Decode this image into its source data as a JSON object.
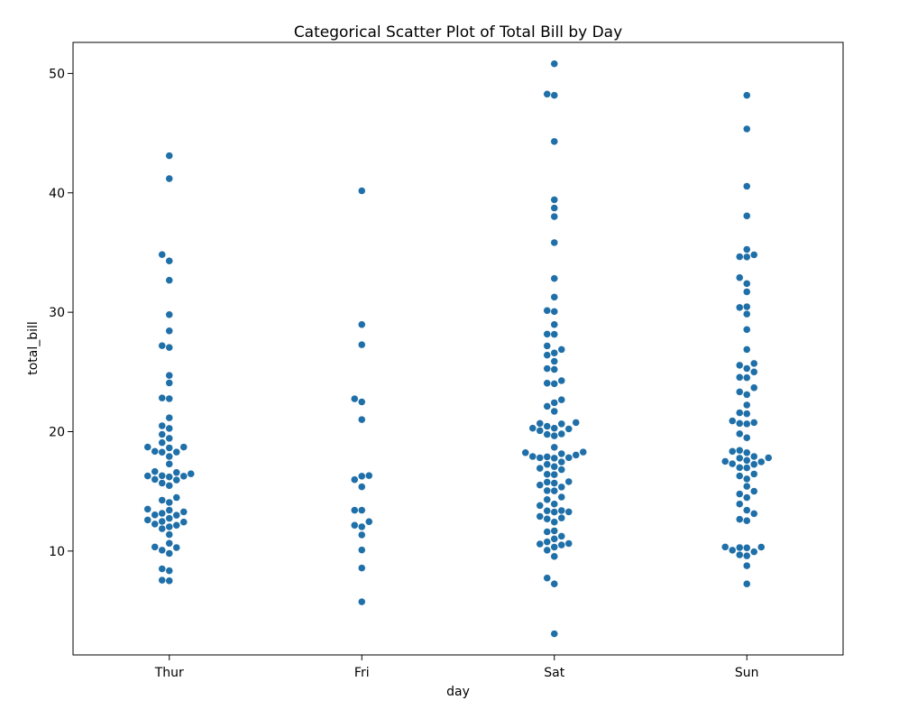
{
  "chart_data": {
    "type": "scatter",
    "title": "Categorical Scatter Plot of Total Bill by Day",
    "xlabel": "day",
    "ylabel": "total_bill",
    "categories": [
      "Thur",
      "Fri",
      "Sat",
      "Sun"
    ],
    "ylim": [
      1.3,
      52.6
    ],
    "yticks": [
      10,
      20,
      30,
      40,
      50
    ],
    "grid": false,
    "legend": "none",
    "marker_color": "#1f6fa8",
    "series": [
      {
        "category": "Thur",
        "values": [
          7.51,
          7.56,
          8.35,
          8.51,
          10.07,
          10.34,
          9.8,
          10.29,
          10.65,
          11.38,
          11.87,
          12.03,
          12.16,
          12.26,
          12.43,
          12.48,
          12.6,
          12.74,
          13.0,
          13.03,
          13.16,
          13.28,
          13.42,
          13.51,
          14.07,
          14.26,
          14.48,
          15.48,
          15.69,
          15.95,
          16.0,
          16.21,
          16.27,
          16.29,
          16.31,
          16.47,
          16.58,
          16.66,
          17.29,
          17.92,
          18.28,
          18.29,
          18.35,
          18.64,
          18.71,
          18.71,
          19.08,
          19.44,
          19.77,
          20.27,
          20.49,
          21.16,
          22.76,
          22.82,
          24.08,
          24.71,
          27.05,
          27.2,
          28.44,
          29.8,
          32.68,
          34.3,
          34.83,
          41.19,
          43.11
        ]
      },
      {
        "category": "Fri",
        "values": [
          5.75,
          8.58,
          10.09,
          11.35,
          12.03,
          12.16,
          12.46,
          13.42,
          13.42,
          15.38,
          15.98,
          16.27,
          16.32,
          21.01,
          22.49,
          22.75,
          27.28,
          28.97,
          40.17
        ]
      },
      {
        "category": "Sat",
        "values": [
          3.07,
          7.25,
          7.74,
          9.55,
          10.07,
          10.33,
          10.51,
          10.59,
          10.63,
          10.77,
          11.02,
          11.24,
          11.61,
          11.69,
          12.43,
          12.69,
          12.77,
          12.9,
          13.27,
          13.28,
          13.37,
          13.39,
          13.81,
          13.94,
          14.31,
          14.52,
          15.04,
          15.06,
          15.36,
          15.53,
          15.69,
          15.77,
          15.81,
          16.4,
          16.43,
          16.82,
          16.93,
          17.07,
          17.26,
          17.46,
          17.78,
          17.81,
          17.82,
          17.89,
          17.92,
          18.04,
          18.15,
          18.24,
          18.29,
          18.69,
          19.65,
          19.77,
          19.81,
          20.08,
          20.23,
          20.29,
          20.29,
          20.45,
          20.65,
          20.69,
          20.76,
          21.7,
          22.12,
          22.42,
          22.67,
          24.01,
          24.06,
          24.27,
          25.21,
          25.28,
          25.89,
          26.41,
          26.59,
          26.88,
          27.18,
          28.15,
          28.17,
          28.97,
          30.06,
          30.14,
          31.27,
          32.83,
          35.83,
          38.01,
          38.73,
          39.42,
          44.3,
          48.17,
          48.27,
          50.81
        ]
      },
      {
        "category": "Sun",
        "values": [
          7.25,
          8.77,
          9.6,
          9.68,
          9.94,
          10.07,
          10.27,
          10.29,
          10.33,
          10.34,
          12.54,
          12.66,
          13.13,
          13.42,
          13.94,
          14.48,
          14.78,
          15.01,
          15.42,
          16.04,
          16.29,
          16.45,
          16.97,
          16.99,
          17.26,
          17.31,
          17.47,
          17.51,
          17.59,
          17.78,
          17.81,
          17.92,
          18.24,
          18.35,
          18.43,
          19.49,
          19.82,
          20.65,
          20.69,
          20.76,
          20.9,
          21.5,
          21.58,
          22.23,
          23.1,
          23.33,
          23.68,
          24.52,
          24.55,
          25.0,
          25.29,
          25.56,
          25.71,
          26.88,
          28.55,
          29.85,
          30.4,
          30.46,
          31.71,
          32.4,
          32.9,
          34.63,
          34.65,
          34.81,
          35.26,
          38.07,
          40.55,
          45.35,
          48.17
        ]
      }
    ]
  }
}
